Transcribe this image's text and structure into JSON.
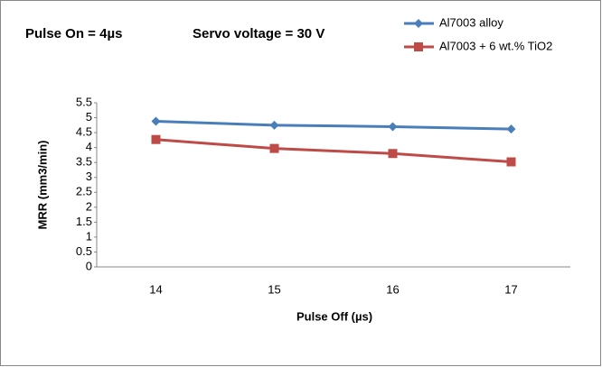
{
  "chart_data": {
    "type": "line",
    "annotations": [
      "Pulse On = 4µs",
      "Servo voltage = 30 V"
    ],
    "xlabel": "Pulse Off (µs)",
    "ylabel": "MRR  (mm3/min)",
    "categories": [
      "14",
      "15",
      "16",
      "17"
    ],
    "series": [
      {
        "name": "Al7003 alloy",
        "color": "#4a7ebb",
        "marker": "diamond",
        "values": [
          4.88,
          4.75,
          4.7,
          4.62
        ]
      },
      {
        "name": "Al7003 + 6 wt.% TiO2",
        "color": "#be4b48",
        "marker": "square",
        "values": [
          4.27,
          3.97,
          3.8,
          3.52
        ]
      }
    ],
    "ylim": [
      0,
      5.5
    ],
    "yticks": [
      0,
      0.5,
      1,
      1.5,
      2,
      2.5,
      3,
      3.5,
      4,
      4.5,
      5,
      5.5
    ],
    "grid": false,
    "legend": "top-right"
  }
}
